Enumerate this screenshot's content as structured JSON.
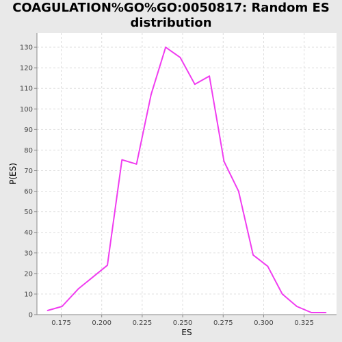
{
  "chart_data": {
    "type": "line",
    "title_line1": "COAGULATION%GO%GO:0050817: Random ES",
    "title_line2": "distribution",
    "xlabel": "ES",
    "ylabel": "P(ES)",
    "xlim": [
      0.16,
      0.345
    ],
    "ylim": [
      0,
      137
    ],
    "x_ticks": [
      "0.175",
      "0.200",
      "0.225",
      "0.250",
      "0.275",
      "0.300",
      "0.325"
    ],
    "y_ticks": [
      "0",
      "10",
      "20",
      "30",
      "40",
      "50",
      "60",
      "70",
      "80",
      "90",
      "100",
      "110",
      "120",
      "130"
    ],
    "grid": true,
    "series": [
      {
        "color": "#f03cf0",
        "x": [
          0.1665,
          0.1755,
          0.1855,
          0.2035,
          0.2125,
          0.2215,
          0.2305,
          0.2395,
          0.2485,
          0.2575,
          0.2665,
          0.2755,
          0.2845,
          0.2935,
          0.3025,
          0.3115,
          0.3205,
          0.3295,
          0.3385
        ],
        "y": [
          2,
          4,
          12.5,
          24,
          75.3,
          73.2,
          107,
          130,
          125,
          112,
          116,
          74.5,
          60,
          29,
          23.5,
          10,
          4,
          1,
          1
        ]
      }
    ]
  }
}
